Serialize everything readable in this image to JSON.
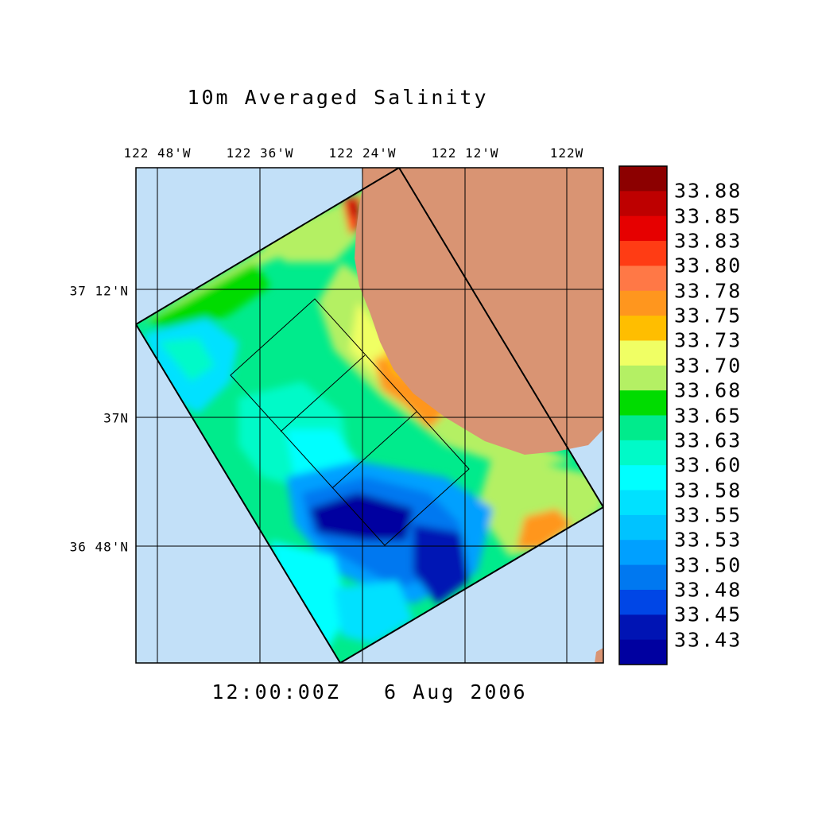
{
  "figure": {
    "title": "10m Averaged Salinity",
    "time_label": "12:00:00Z   6 Aug 2006"
  },
  "map": {
    "lon_tick_labels": [
      "122 48'W",
      "122 36'W",
      "122 24'W",
      "122 12'W",
      "122W"
    ],
    "lat_tick_labels": [
      "37 12'N",
      "37N",
      "36 48'N"
    ],
    "colors": {
      "ocean": "#c2e0f8",
      "land": "#d99473",
      "grid": "#000000"
    }
  },
  "colorbar": {
    "labels": [
      "33.88",
      "33.85",
      "33.83",
      "33.80",
      "33.78",
      "33.75",
      "33.73",
      "33.70",
      "33.68",
      "33.65",
      "33.63",
      "33.60",
      "33.58",
      "33.55",
      "33.53",
      "33.50",
      "33.48",
      "33.45",
      "33.43"
    ],
    "colors": [
      "#8c0000",
      "#be0000",
      "#e60000",
      "#ff3c14",
      "#ff7846",
      "#ff961e",
      "#ffbe00",
      "#f0ff64",
      "#b4f064",
      "#00dc00",
      "#00eb8c",
      "#00fac8",
      "#00ffff",
      "#00e1ff",
      "#00c3ff",
      "#00a0ff",
      "#0078f0",
      "#0046e6",
      "#0014b4",
      "#0000a0"
    ]
  },
  "chart_data": {
    "type": "heatmap",
    "title": "10m Averaged Salinity",
    "variable": "salinity",
    "xlabel": "",
    "ylabel": "",
    "x_ticks": [
      "122 48'W",
      "122 36'W",
      "122 24'W",
      "122 12'W",
      "122W"
    ],
    "y_ticks": [
      "37 12'N",
      "37N",
      "36 48'N"
    ],
    "colorbar_levels": [
      33.88,
      33.85,
      33.83,
      33.8,
      33.78,
      33.75,
      33.73,
      33.7,
      33.68,
      33.65,
      33.63,
      33.6,
      33.58,
      33.55,
      33.53,
      33.5,
      33.48,
      33.45,
      33.43
    ],
    "time": "12:00:00Z   6 Aug 2006"
  }
}
